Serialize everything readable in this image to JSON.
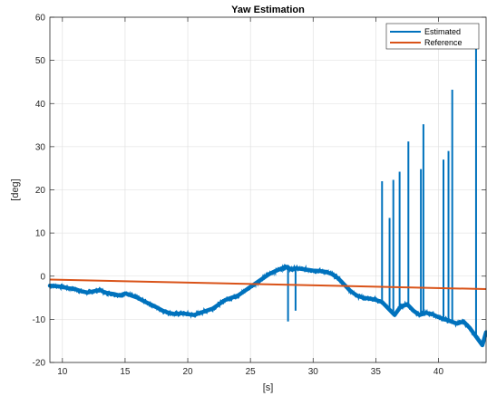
{
  "chart_data": {
    "type": "line",
    "title": "Yaw Estimation",
    "xlabel": "[s]",
    "ylabel": "[deg]",
    "xlim": [
      9,
      43.8
    ],
    "ylim": [
      -20,
      60
    ],
    "x_ticks": [
      10,
      15,
      20,
      25,
      30,
      35,
      40
    ],
    "y_ticks": [
      -20,
      -10,
      0,
      10,
      20,
      30,
      40,
      50,
      60
    ],
    "grid": true,
    "legend_position": "top-right",
    "series": [
      {
        "name": "Estimated",
        "color": "#0072BD",
        "x": [
          9,
          9.5,
          10,
          10.5,
          11,
          11.5,
          12,
          12.5,
          13,
          13.4,
          13.8,
          14.2,
          14.6,
          15,
          15.5,
          16,
          16.5,
          17,
          17.5,
          18,
          18.5,
          19,
          19.5,
          20,
          20.5,
          21,
          21.5,
          22,
          22.5,
          23,
          23.5,
          24,
          24.5,
          25,
          25.5,
          26,
          26.5,
          27,
          27.5,
          27.8,
          28,
          28.3,
          28.5,
          29,
          29.5,
          30,
          30.5,
          31,
          31.5,
          32,
          32.5,
          33,
          33.5,
          34,
          34.5,
          35,
          35.5,
          36,
          36.5,
          37,
          37.5,
          38,
          38.5,
          39,
          39.5,
          40,
          40.5,
          41,
          41.5,
          42,
          42.5,
          43,
          43.5,
          43.8
        ],
        "y": [
          -2.2,
          -2.3,
          -2.5,
          -2.8,
          -3.0,
          -3.5,
          -3.8,
          -3.5,
          -3.2,
          -3.8,
          -4.0,
          -4.2,
          -4.5,
          -4.0,
          -4.5,
          -5.0,
          -5.8,
          -6.5,
          -7.2,
          -8.0,
          -8.5,
          -8.8,
          -8.6,
          -8.8,
          -9.0,
          -8.5,
          -8.0,
          -7.5,
          -6.5,
          -5.5,
          -5.0,
          -4.5,
          -3.5,
          -2.5,
          -1.5,
          -0.5,
          0.5,
          1.2,
          1.8,
          2.2,
          2.0,
          1.5,
          1.8,
          1.7,
          1.5,
          1.3,
          1.2,
          1.0,
          0.5,
          -0.5,
          -2.0,
          -3.5,
          -4.5,
          -5.0,
          -5.2,
          -5.5,
          -6.0,
          -7.5,
          -9.0,
          -7.0,
          -6.5,
          -8.0,
          -9.0,
          -8.5,
          -8.8,
          -9.5,
          -10.0,
          -10.5,
          -11.0,
          -10.5,
          -12.0,
          -14.0,
          -16.0,
          -13.0
        ],
        "spikes": [
          {
            "x": 28.0,
            "y": -10.5
          },
          {
            "x": 28.6,
            "y": -8.0
          },
          {
            "x": 35.5,
            "y": 22.0
          },
          {
            "x": 36.1,
            "y": 13.5
          },
          {
            "x": 36.4,
            "y": 22.3
          },
          {
            "x": 36.9,
            "y": 24.2
          },
          {
            "x": 37.6,
            "y": 31.2
          },
          {
            "x": 38.6,
            "y": 24.8
          },
          {
            "x": 38.8,
            "y": 35.2
          },
          {
            "x": 40.4,
            "y": 27.0
          },
          {
            "x": 40.8,
            "y": 29.0
          },
          {
            "x": 41.1,
            "y": 43.2
          },
          {
            "x": 43.0,
            "y": 54.0
          }
        ]
      },
      {
        "name": "Reference",
        "color": "#D95319",
        "x": [
          9,
          43.8
        ],
        "y": [
          -0.8,
          -3.0
        ]
      }
    ]
  }
}
